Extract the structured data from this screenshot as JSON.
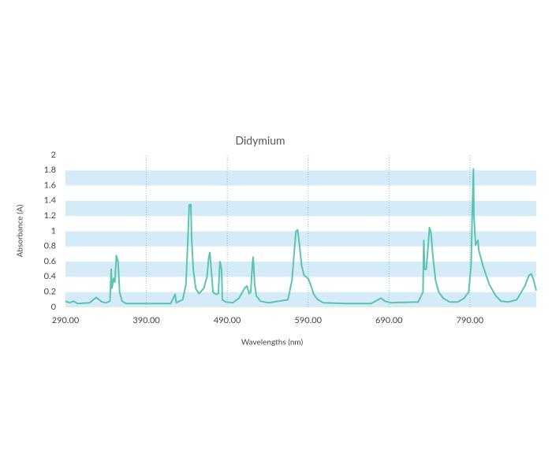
{
  "chart_data": {
    "type": "line",
    "title": "Didymium",
    "x_label": "Wavelengths (nm)",
    "y_label": "Absorbance (A)",
    "xlim": [
      290,
      872
    ],
    "ylim": [
      0,
      2
    ],
    "xticks": [
      {
        "value": 290,
        "label": "290.00"
      },
      {
        "value": 390,
        "label": "390.00"
      },
      {
        "value": 490,
        "label": "490.00"
      },
      {
        "value": 590,
        "label": "590.00"
      },
      {
        "value": 690,
        "label": "690.00"
      },
      {
        "value": 790,
        "label": "790.00"
      }
    ],
    "yticks": [
      0,
      0.2,
      0.4,
      0.6,
      0.8,
      1,
      1.2,
      1.4,
      1.6,
      1.8,
      2
    ],
    "grid": "bands",
    "band_color": "#d5ebf8",
    "vgrid_color": "#7cc2ea",
    "series": [
      {
        "color": "#5cc4ae",
        "x": [
          290,
          295,
          300,
          305,
          320,
          328,
          335,
          340,
          345,
          346.6,
          347.5,
          349.5,
          351,
          353,
          355,
          357,
          360,
          365,
          420,
          425.6,
          427,
          435,
          439,
          441,
          443,
          445,
          446,
          448,
          451,
          455,
          461,
          465,
          467,
          468.5,
          470.5,
          472.4,
          476,
          479,
          481,
          483,
          484,
          488,
          497,
          504.6,
          511.5,
          514.4,
          517,
          519,
          521,
          522,
          524,
          526,
          531,
          541,
          565,
          570,
          573,
          575,
          577,
          579,
          582,
          585,
          590,
          593,
          597,
          602,
          609,
          638,
          668,
          675,
          680,
          685,
          692,
          726,
          732,
          733,
          734,
          736,
          738,
          740,
          742,
          744,
          747.6,
          751.5,
          757,
          765,
          775,
          783,
          788.5,
          791.5,
          793,
          794.4,
          795,
          797,
          800,
          801,
          806,
          814,
          822,
          828.5,
          838,
          848,
          858,
          863,
          866,
          869,
          872
        ],
        "values": [
          0.08,
          0.06,
          0.08,
          0.05,
          0.06,
          0.13,
          0.07,
          0.06,
          0.08,
          0.5,
          0.25,
          0.38,
          0.33,
          0.68,
          0.6,
          0.2,
          0.08,
          0.05,
          0.05,
          0.17,
          0.06,
          0.1,
          0.3,
          0.8,
          1.35,
          1.35,
          0.9,
          0.5,
          0.25,
          0.18,
          0.25,
          0.4,
          0.65,
          0.72,
          0.45,
          0.2,
          0.17,
          0.18,
          0.6,
          0.5,
          0.1,
          0.07,
          0.06,
          0.12,
          0.25,
          0.28,
          0.18,
          0.2,
          0.55,
          0.66,
          0.3,
          0.15,
          0.08,
          0.06,
          0.1,
          0.35,
          0.75,
          1.0,
          1.02,
          0.85,
          0.55,
          0.42,
          0.38,
          0.3,
          0.17,
          0.1,
          0.06,
          0.05,
          0.05,
          0.09,
          0.12,
          0.08,
          0.06,
          0.07,
          0.2,
          0.88,
          0.5,
          0.5,
          0.75,
          1.05,
          0.98,
          0.7,
          0.35,
          0.2,
          0.12,
          0.07,
          0.07,
          0.12,
          0.2,
          0.55,
          1.3,
          1.82,
          1.2,
          0.82,
          0.88,
          0.75,
          0.55,
          0.3,
          0.15,
          0.08,
          0.07,
          0.1,
          0.28,
          0.42,
          0.44,
          0.35,
          0.22
        ]
      }
    ]
  }
}
